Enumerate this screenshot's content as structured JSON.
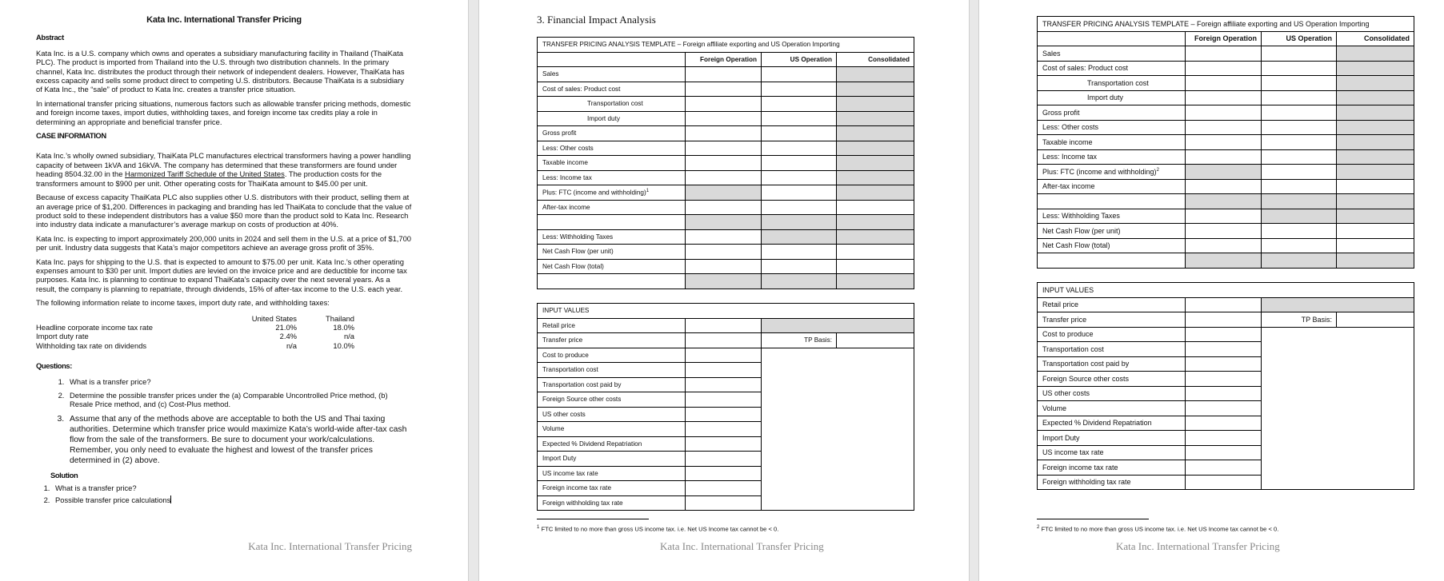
{
  "page1": {
    "title": "Kata Inc. International Transfer Pricing",
    "abstract_heading": "Abstract",
    "abstract_p1": "Kata Inc. is a U.S. company which owns and operates a subsidiary manufacturing facility in Thailand (ThaiKata PLC). The product is imported from Thailand into the U.S. through two distribution channels. In the primary channel, Kata Inc. distributes the product through their network of independent dealers. However, ThaiKata has excess capacity and sells some product direct to competing U.S. distributors. Because ThaiKata is a subsidiary of Kata Inc., the “sale” of product to Kata Inc. creates a transfer price situation.",
    "abstract_p2": "In international transfer pricing situations, numerous factors such as allowable transfer pricing methods, domestic and foreign income taxes, import duties, withholding taxes, and foreign income tax credits play a role in determining an appropriate and beneficial transfer price.",
    "case_heading": "CASE INFORMATION",
    "case_p1_a": "Kata Inc.’s wholly owned subsidiary, ThaiKata PLC manufactures electrical transformers having a power handling capacity of between 1kVA and 16kVA. The company has determined that these transformers are found under heading 8504.32.00 in the ",
    "case_p1_link": "Harmonized Tariff Schedule of the United States",
    "case_p1_b": ". The production costs for the transformers amount to $900 per unit. Other operating costs for ThaiKata amount to $45.00 per unit.",
    "case_p2": "Because of excess capacity ThaiKata PLC also supplies other U.S. distributors with their product, selling them at an average price of $1,200. Differences in packaging and branding has led ThaiKata to conclude that the value of product sold to these independent distributors has a value $50 more than the product sold to Kata Inc. Research into industry data indicate a manufacturer’s average markup on costs of production at 40%.",
    "case_p3": "Kata Inc. is expecting to import approximately 200,000 units in 2024 and sell them in the U.S. at a price of $1,700 per unit. Industry data suggests that Kata’s major competitors achieve an average gross profit of 35%.",
    "case_p4": "Kata Inc. pays for shipping to the U.S. that is expected to amount to $75.00 per unit. Kata Inc.’s other operating expenses amount to $30 per unit. Import duties are levied on the invoice price and are deductible for income tax purposes. Kata Inc. is planning to continue to expand ThaiKata’s capacity over the next several years. As a result, the company is planning to repatriate, through dividends, 15% of after-tax income to the U.S. each year.",
    "case_p5": "The following information relate to income taxes, import duty rate, and withholding taxes:",
    "tax_table": {
      "headers": [
        "",
        "United States",
        "Thailand"
      ],
      "rows": [
        [
          "Headline corporate income tax rate",
          "21.0%",
          "18.0%"
        ],
        [
          "Import duty rate",
          "2.4%",
          "n/a"
        ],
        [
          "Withholding tax rate on dividends",
          "n/a",
          "10.0%"
        ]
      ]
    },
    "questions_heading": "Questions:",
    "questions": [
      "What is a transfer price?",
      "Determine the possible transfer prices under the (a) Comparable Uncontrolled Price method, (b) Resale Price method, and (c) Cost-Plus method.",
      "Assume that any of the methods above are acceptable to both the US and Thai taxing authorities. Determine which transfer price would maximize Kata’s world-wide after-tax cash flow from the sale of the transformers. Be sure to document your work/calculations. Remember, you only need to evaluate the highest and lowest of the transfer prices determined in (2) above."
    ],
    "solution_heading": "Solution",
    "solutions": [
      "What is a transfer price?",
      "Possible transfer price calculations"
    ],
    "footer": "Kata Inc. International Transfer Pricing"
  },
  "page2": {
    "section_title": "3.   Financial Impact Analysis",
    "footnote_mark": "1",
    "footnote": "FTC limited to no more than gross US income tax. i.e. Net US Income tax cannot be < 0.",
    "footer": "Kata Inc. International Transfer Pricing"
  },
  "page3": {
    "footnote_mark": "2",
    "footnote": "FTC limited to no more than gross US income tax. i.e. Net US Income tax cannot be < 0.",
    "footer": "Kata Inc. International Transfer Pricing"
  },
  "template": {
    "title": "TRANSFER PRICING ANALYSIS TEMPLATE – Foreign affiliate exporting and  US Operation Importing",
    "columns": [
      "Foreign Operation",
      "US Operation",
      "Consolidated"
    ],
    "rows": [
      {
        "label": "Sales",
        "shaded": [
          false,
          false,
          true
        ]
      },
      {
        "label": "Cost of sales: Product cost",
        "shaded": [
          false,
          false,
          true
        ]
      },
      {
        "label": "Transportation cost",
        "indent": true,
        "shaded": [
          false,
          false,
          true
        ]
      },
      {
        "label": "Import duty",
        "indent": true,
        "shaded": [
          false,
          false,
          true
        ]
      },
      {
        "label": "Gross profit",
        "shaded": [
          false,
          false,
          true
        ]
      },
      {
        "label": "Less: Other costs",
        "shaded": [
          false,
          false,
          true
        ]
      },
      {
        "label": "Taxable income",
        "shaded": [
          false,
          false,
          true
        ]
      },
      {
        "label": "Less: Income tax",
        "shaded": [
          false,
          false,
          true
        ]
      },
      {
        "label": "Plus: FTC (income and withholding)",
        "footnote": true,
        "shaded": [
          true,
          false,
          true
        ]
      },
      {
        "label": "After-tax income",
        "shaded": [
          false,
          false,
          false
        ]
      },
      {
        "label": "",
        "shaded": [
          true,
          true,
          true
        ]
      },
      {
        "label": "Less: Withholding Taxes",
        "shaded": [
          false,
          true,
          true
        ]
      },
      {
        "label": "Net Cash Flow (per unit)",
        "shaded": [
          false,
          false,
          false
        ]
      },
      {
        "label": "Net Cash Flow (total)",
        "shaded": [
          false,
          false,
          false
        ]
      },
      {
        "label": "",
        "shaded": [
          true,
          true,
          true
        ]
      }
    ]
  },
  "inputs": {
    "title": "INPUT VALUES",
    "tp_basis_label": "TP Basis:",
    "rows": [
      "Retail price",
      "Transfer price",
      "Cost to produce",
      "Transportation cost",
      "Transportation cost paid by",
      "Foreign Source other costs",
      "US other costs",
      "Volume",
      "Expected % Dividend Repatriation",
      "Import Duty",
      "US income tax rate",
      "Foreign income tax rate",
      "Foreign withholding tax rate"
    ]
  },
  "colors": {
    "shaded_cell": "#d9d9d9",
    "footer_text": "#888888"
  }
}
